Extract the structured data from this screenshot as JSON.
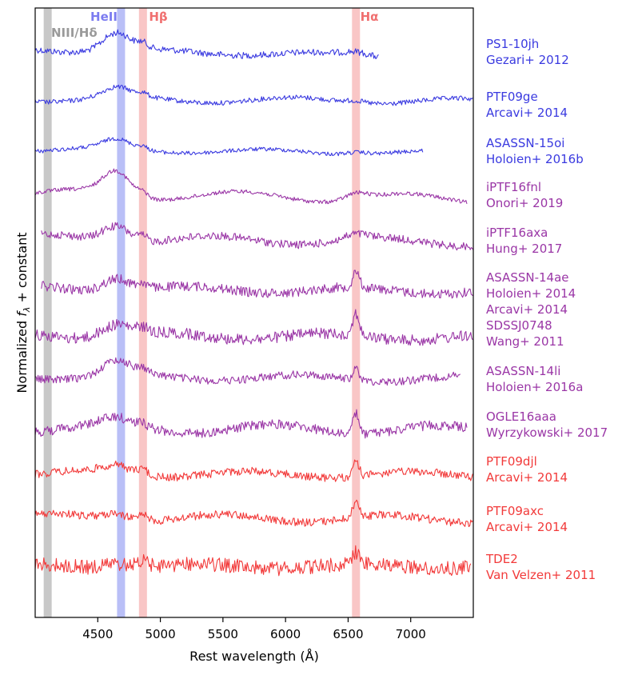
{
  "chart_data": {
    "type": "line",
    "xlabel": "Rest wavelength (Å)",
    "ylabel_prefix": "Normalized ",
    "ylabel_symbol": "f",
    "ylabel_subscript": "λ",
    "ylabel_suffix": " + constant",
    "xlim": [
      4000,
      7500
    ],
    "xticks": [
      4500,
      5000,
      5500,
      6000,
      6500,
      7000
    ],
    "y_ticks_shown": false,
    "line_markers": [
      {
        "label": "NIII/Hδ",
        "wavelength": 4100,
        "color": "#c8c8c8"
      },
      {
        "label": "HeII",
        "wavelength": 4686,
        "color": "#b9bff7"
      },
      {
        "label": "Hβ",
        "wavelength": 4861,
        "color": "#f9c6c6"
      },
      {
        "label": "Hα",
        "wavelength": 6563,
        "color": "#f9c6c6"
      }
    ],
    "colors": {
      "blue": "#3a3ae0",
      "purple": "#9a36a6",
      "red": "#f23a3a"
    },
    "series": [
      {
        "object": "PS1-10jh",
        "reference": "Gezari+ 2012",
        "color_group": "blue",
        "x_range": [
          4000,
          6750
        ]
      },
      {
        "object": "PTF09ge",
        "reference": "Arcavi+ 2014",
        "color_group": "blue",
        "x_range": [
          4000,
          7500
        ]
      },
      {
        "object": "ASASSN-15oi",
        "reference": "Holoien+ 2016b",
        "color_group": "blue",
        "x_range": [
          4000,
          7100
        ]
      },
      {
        "object": "iPTF16fnl",
        "reference": "Onori+ 2019",
        "color_group": "purple",
        "x_range": [
          4000,
          7450
        ]
      },
      {
        "object": "iPTF16axa",
        "reference": "Hung+ 2017",
        "color_group": "purple",
        "x_range": [
          4050,
          7500
        ]
      },
      {
        "object": "ASASSN-14ae",
        "reference": "Holoien+ 2014",
        "reference2": "Arcavi+ 2014",
        "color_group": "purple",
        "x_range": [
          4050,
          7500
        ]
      },
      {
        "object": "SDSSJ0748",
        "reference": "Wang+ 2011",
        "color_group": "purple",
        "x_range": [
          4000,
          7500
        ]
      },
      {
        "object": "ASASSN-14li",
        "reference": "Holoien+ 2016a",
        "color_group": "purple",
        "x_range": [
          4000,
          7400
        ]
      },
      {
        "object": "OGLE16aaa",
        "reference": "Wyrzykowski+ 2017",
        "color_group": "purple",
        "x_range": [
          4000,
          7450
        ]
      },
      {
        "object": "PTF09djl",
        "reference": "Arcavi+ 2014",
        "color_group": "red",
        "x_range": [
          4000,
          7500
        ]
      },
      {
        "object": "PTF09axc",
        "reference": "Arcavi+ 2014",
        "color_group": "red",
        "x_range": [
          4000,
          7500
        ]
      },
      {
        "object": "TDE2",
        "reference": "Van Velzen+ 2011",
        "color_group": "red",
        "x_range": [
          4000,
          7480
        ]
      }
    ]
  }
}
